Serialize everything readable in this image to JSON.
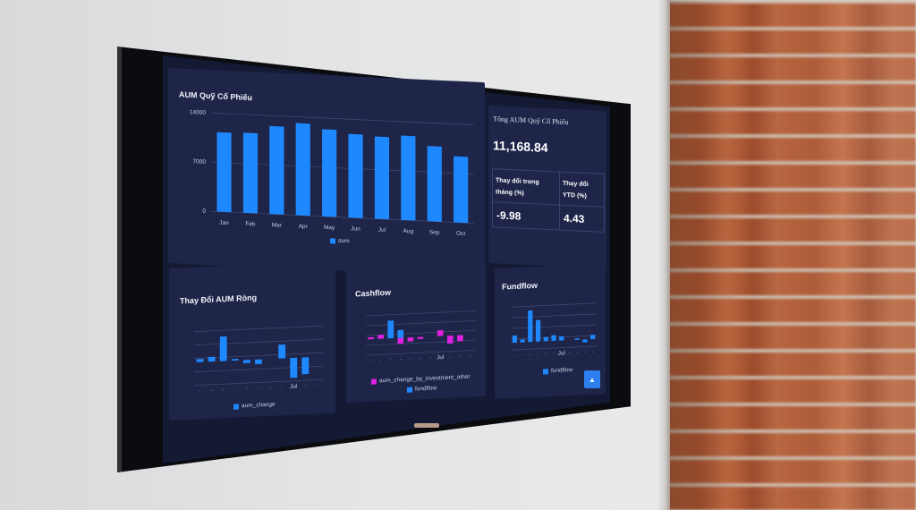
{
  "scene": {
    "colors": {
      "wall": "#e4e5e5",
      "brick": "#b5603a",
      "tv_bezel": "#0b0c10",
      "screen_bg": "#141a33",
      "panel_bg": "#1e2549",
      "bar_blue": "#1e88ff",
      "bar_magenta": "#e020e0"
    }
  },
  "dashboard": {
    "aum_chart": {
      "title": "AUM Quỹ Cổ Phiếu",
      "legend": "aum"
    },
    "kpi": {
      "title": "Tổng AUM Quỹ Cổ Phiếu",
      "value": "11,168.84",
      "month_change_label": "Thay đổi trong tháng (%)",
      "month_change_value": "-9.98",
      "ytd_change_label": "Thay đổi YTD (%)",
      "ytd_change_value": "4.43"
    },
    "net_change_chart": {
      "title": "Thay Đổi AUM Ròng",
      "legend": "aum_change",
      "x_tick_label": "Jul"
    },
    "cashflow_chart": {
      "title": "Cashflow",
      "legend_1": "aum_change_by_investment_other",
      "legend_2": "fundflow",
      "x_tick_label": "Jul"
    },
    "fundflow_chart": {
      "title": "Fundflow",
      "legend": "fundflow",
      "x_tick_label": "Jul"
    },
    "scroll_top_icon": "arrow-up-icon"
  },
  "chart_data": [
    {
      "type": "bar",
      "title": "AUM Quỹ Cổ Phiếu",
      "categories": [
        "Jan",
        "Feb",
        "Mar",
        "Apr",
        "May",
        "Jun",
        "Jul",
        "Aug",
        "Sep",
        "Oct"
      ],
      "series": [
        {
          "name": "aum",
          "values": [
            11300,
            11400,
            12500,
            13100,
            12400,
            11900,
            11700,
            12000,
            10700,
            9400
          ]
        }
      ],
      "yticks": [
        "0",
        "7000",
        "14000"
      ],
      "ylim": [
        0,
        14000
      ]
    },
    {
      "type": "bar",
      "title": "Thay Đổi AUM Ròng",
      "categories": [
        "",
        "",
        "",
        "",
        "",
        "",
        "",
        "",
        "",
        "",
        ""
      ],
      "series": [
        {
          "name": "aum_change",
          "values": [
            200,
            300,
            1600,
            100,
            -200,
            -300,
            0,
            900,
            -1300,
            -1100,
            0
          ]
        }
      ],
      "ylim": [
        -1500,
        2000
      ]
    },
    {
      "type": "bar",
      "title": "Cashflow",
      "series": [
        {
          "name": "aum_change_by_investment_other",
          "values": [
            100,
            200,
            0,
            -300,
            -200,
            -100,
            0,
            300,
            -400,
            -300,
            0
          ]
        },
        {
          "name": "fundflow",
          "values": [
            0,
            0,
            900,
            400,
            0,
            0,
            0,
            0,
            0,
            0,
            0
          ]
        }
      ],
      "ylim": [
        -800,
        1200
      ]
    },
    {
      "type": "bar",
      "title": "Fundflow",
      "series": [
        {
          "name": "fundflow",
          "values": [
            500,
            200,
            2200,
            1500,
            300,
            400,
            300,
            0,
            100,
            -200,
            300
          ]
        }
      ],
      "ylim": [
        -500,
        2500
      ]
    }
  ]
}
